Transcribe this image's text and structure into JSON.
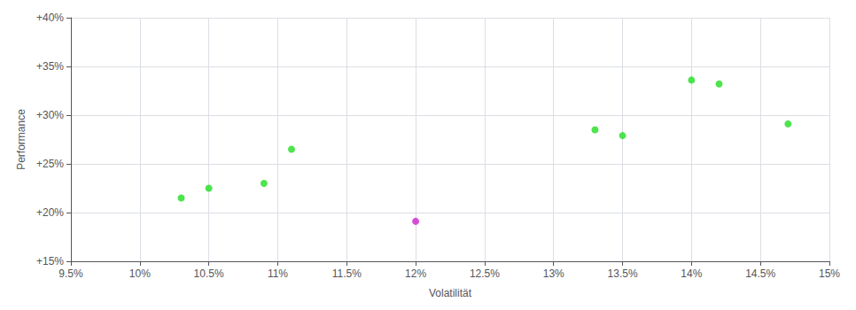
{
  "chart_data": {
    "type": "scatter",
    "xlabel": "Volatilität",
    "ylabel": "Performance",
    "xlim": [
      0.095,
      0.15
    ],
    "ylim": [
      0.15,
      0.4
    ],
    "xticks": [
      {
        "value": 0.095,
        "label": "9.5%"
      },
      {
        "value": 0.1,
        "label": "10%"
      },
      {
        "value": 0.105,
        "label": "10.5%"
      },
      {
        "value": 0.11,
        "label": "11%"
      },
      {
        "value": 0.115,
        "label": "11.5%"
      },
      {
        "value": 0.12,
        "label": "12%"
      },
      {
        "value": 0.125,
        "label": "12.5%"
      },
      {
        "value": 0.13,
        "label": "13%"
      },
      {
        "value": 0.135,
        "label": "13.5%"
      },
      {
        "value": 0.14,
        "label": "14%"
      },
      {
        "value": 0.145,
        "label": "14.5%"
      },
      {
        "value": 0.15,
        "label": "15%"
      }
    ],
    "yticks": [
      {
        "value": 0.15,
        "label": "+15%"
      },
      {
        "value": 0.2,
        "label": "+20%"
      },
      {
        "value": 0.25,
        "label": "+25%"
      },
      {
        "value": 0.3,
        "label": "+30%"
      },
      {
        "value": 0.35,
        "label": "+35%"
      },
      {
        "value": 0.4,
        "label": "+40%"
      }
    ],
    "grid": true,
    "series": [
      {
        "color": "#22dd22",
        "x": [
          0.103,
          0.105,
          0.109,
          0.111,
          0.133,
          0.135,
          0.14,
          0.142,
          0.147
        ],
        "values": [
          0.215,
          0.225,
          0.23,
          0.265,
          0.285,
          0.279,
          0.336,
          0.332,
          0.291
        ]
      },
      {
        "color": "#cc22cc",
        "x": [
          0.12
        ],
        "values": [
          0.191
        ]
      }
    ]
  }
}
